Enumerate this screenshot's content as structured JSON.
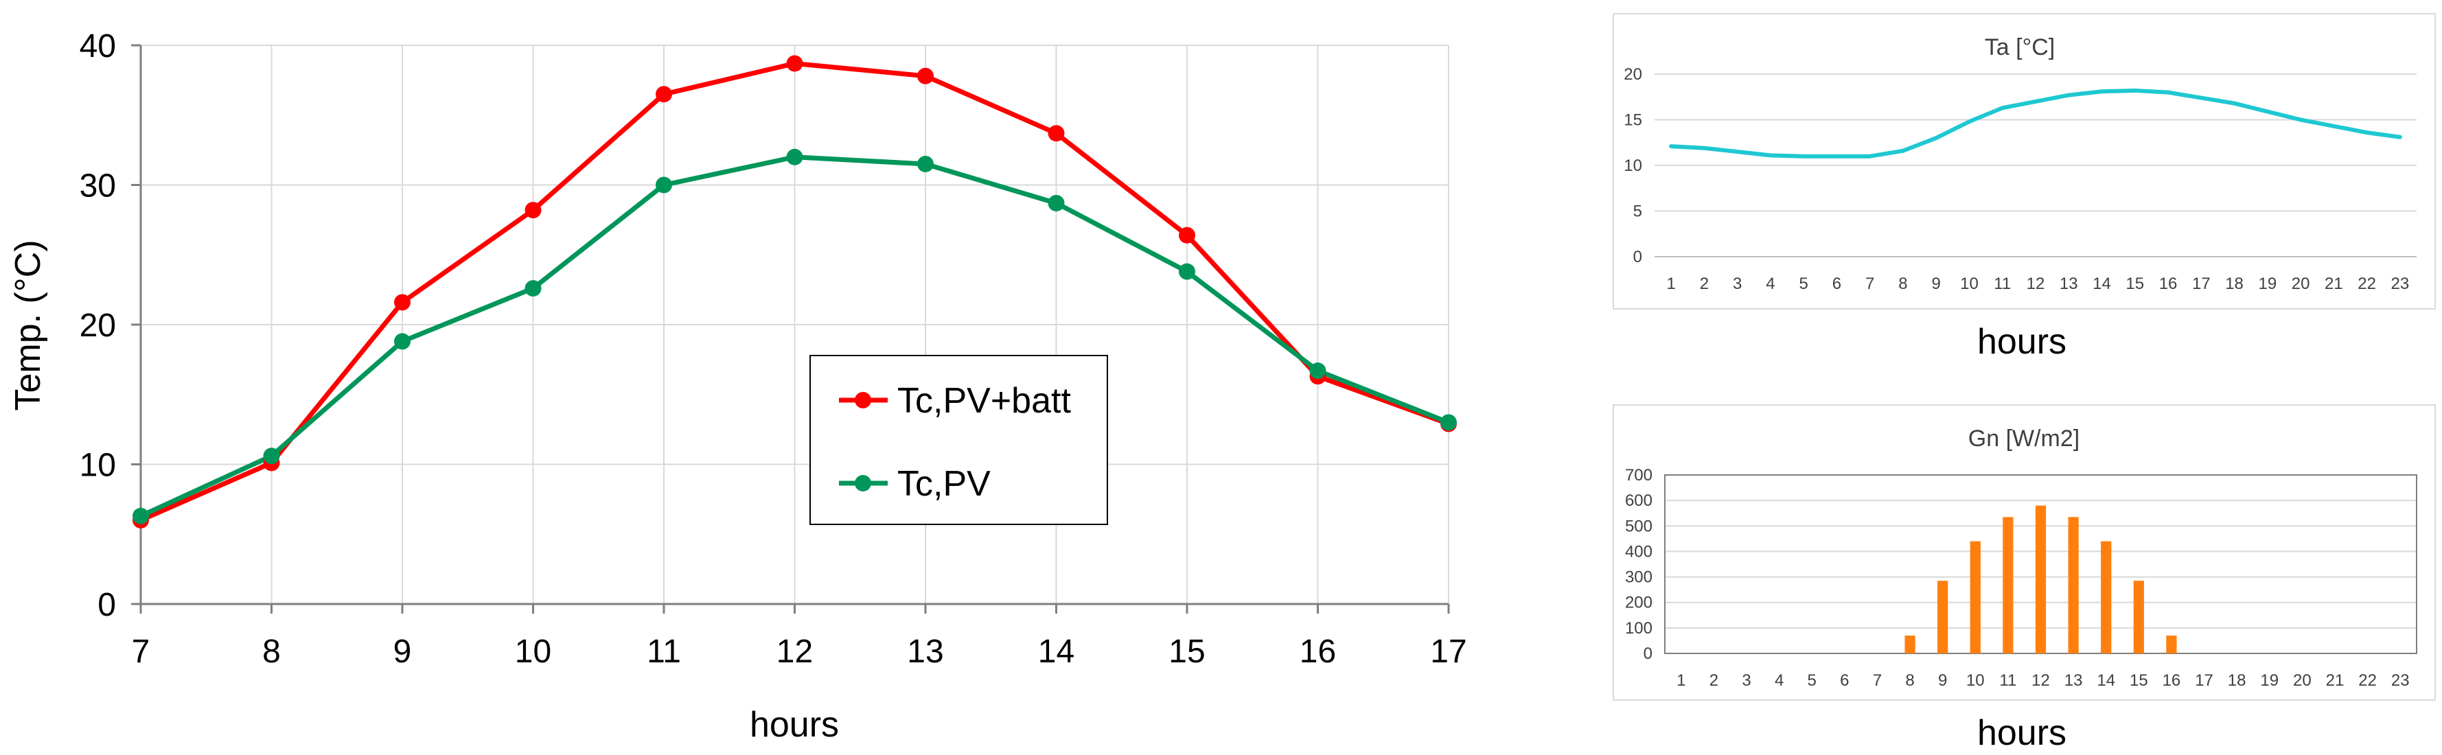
{
  "chart_data": [
    {
      "type": "line",
      "title": "",
      "xlabel": "hours",
      "ylabel": "Temp. (°C)",
      "x": [
        7,
        8,
        9,
        10,
        11,
        12,
        13,
        14,
        15,
        16,
        17
      ],
      "xlim": [
        7,
        17
      ],
      "ylim": [
        0,
        40
      ],
      "yticks": [
        0,
        10,
        20,
        30,
        40
      ],
      "grid": true,
      "legend_position": "center-right",
      "series": [
        {
          "name": "Tc,PV+batt",
          "color": "#ff0000",
          "values": [
            6.0,
            10.1,
            21.6,
            28.2,
            36.5,
            38.7,
            37.8,
            33.7,
            26.4,
            16.3,
            12.9
          ]
        },
        {
          "name": "Tc,PV",
          "color": "#00965a",
          "values": [
            6.3,
            10.6,
            18.8,
            22.6,
            30.0,
            32.0,
            31.5,
            28.7,
            23.8,
            16.7,
            13.0
          ]
        }
      ]
    },
    {
      "type": "line",
      "title": "Ta [°C]",
      "xlabel": "hours",
      "ylabel": "",
      "categories": [
        "1",
        "2",
        "3",
        "4",
        "5",
        "6",
        "7",
        "8",
        "9",
        "10",
        "11",
        "12",
        "13",
        "14",
        "15",
        "16",
        "17",
        "18",
        "19",
        "20",
        "21",
        "22",
        "23"
      ],
      "ylim": [
        0,
        20
      ],
      "yticks": [
        0,
        5,
        10,
        15,
        20
      ],
      "grid": true,
      "series": [
        {
          "name": "Ta [°C]",
          "color": "#1ec8d2",
          "values": [
            12.1,
            11.9,
            11.5,
            11.1,
            11.0,
            11.0,
            11.0,
            11.6,
            13.0,
            14.8,
            16.3,
            17.0,
            17.7,
            18.1,
            18.2,
            18.0,
            17.4,
            16.8,
            15.9,
            15.0,
            14.3,
            13.6,
            13.1
          ]
        }
      ]
    },
    {
      "type": "bar",
      "title": "Gn [W/m2]",
      "xlabel": "hours",
      "ylabel": "",
      "categories": [
        "1",
        "2",
        "3",
        "4",
        "5",
        "6",
        "7",
        "8",
        "9",
        "10",
        "11",
        "12",
        "13",
        "14",
        "15",
        "16",
        "17",
        "18",
        "19",
        "20",
        "21",
        "22",
        "23"
      ],
      "ylim": [
        0,
        700
      ],
      "yticks": [
        0,
        100,
        200,
        300,
        400,
        500,
        600,
        700
      ],
      "grid": true,
      "series": [
        {
          "name": "Gn [W/m2]",
          "color": "#ff7f0e",
          "values": [
            0,
            0,
            0,
            0,
            0,
            0,
            0,
            70,
            285,
            440,
            535,
            580,
            535,
            440,
            285,
            70,
            0,
            0,
            0,
            0,
            0,
            0,
            0
          ]
        }
      ]
    }
  ]
}
